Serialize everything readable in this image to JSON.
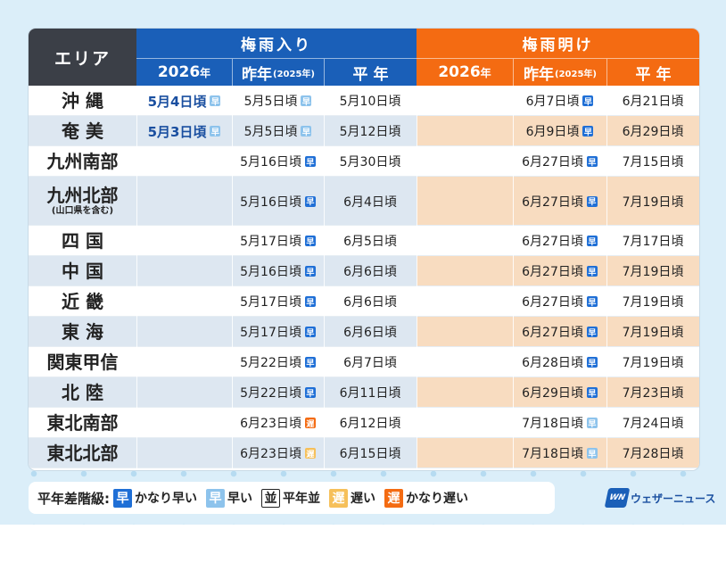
{
  "header": {
    "area": "エリア",
    "onset_group": "梅雨入り",
    "end_group": "梅雨明け",
    "col_current_num": "2026",
    "col_current_suffix": "年",
    "col_last_main": "昨年",
    "col_last_sub": "(2025年)",
    "col_normal": "平 年"
  },
  "colors": {
    "badge_much_earlier": "#1f6fd6",
    "badge_earlier": "#8dc3ec",
    "badge_normal": "#ffffff",
    "badge_later": "#f6c05a",
    "badge_much_later": "#f46b12"
  },
  "rows": [
    {
      "area": "沖 縄",
      "onset_2026": "5月4日頃",
      "onset_2026_badge": "早",
      "onset_2026_level": "earlier",
      "onset_last": "5月5日頃",
      "onset_last_badge": "早",
      "onset_last_level": "earlier",
      "onset_normal": "5月10日頃",
      "end_2026": "",
      "end_last": "6月7日頃",
      "end_last_badge": "早",
      "end_last_level": "much_earlier",
      "end_normal": "6月21日頃"
    },
    {
      "area": "奄 美",
      "onset_2026": "5月3日頃",
      "onset_2026_badge": "早",
      "onset_2026_level": "earlier",
      "onset_last": "5月5日頃",
      "onset_last_badge": "早",
      "onset_last_level": "earlier",
      "onset_normal": "5月12日頃",
      "end_2026": "",
      "end_last": "6月9日頃",
      "end_last_badge": "早",
      "end_last_level": "much_earlier",
      "end_normal": "6月29日頃"
    },
    {
      "area": "九州南部",
      "onset_2026": "",
      "onset_last": "5月16日頃",
      "onset_last_badge": "早",
      "onset_last_level": "much_earlier",
      "onset_normal": "5月30日頃",
      "end_2026": "",
      "end_last": "6月27日頃",
      "end_last_badge": "早",
      "end_last_level": "much_earlier",
      "end_normal": "7月15日頃"
    },
    {
      "area": "九州北部",
      "area_note": "(山口県を含む)",
      "onset_2026": "",
      "onset_last": "5月16日頃",
      "onset_last_badge": "早",
      "onset_last_level": "much_earlier",
      "onset_normal": "6月4日頃",
      "end_2026": "",
      "end_last": "6月27日頃",
      "end_last_badge": "早",
      "end_last_level": "much_earlier",
      "end_normal": "7月19日頃"
    },
    {
      "area": "四 国",
      "onset_2026": "",
      "onset_last": "5月17日頃",
      "onset_last_badge": "早",
      "onset_last_level": "much_earlier",
      "onset_normal": "6月5日頃",
      "end_2026": "",
      "end_last": "6月27日頃",
      "end_last_badge": "早",
      "end_last_level": "much_earlier",
      "end_normal": "7月17日頃"
    },
    {
      "area": "中 国",
      "onset_2026": "",
      "onset_last": "5月16日頃",
      "onset_last_badge": "早",
      "onset_last_level": "much_earlier",
      "onset_normal": "6月6日頃",
      "end_2026": "",
      "end_last": "6月27日頃",
      "end_last_badge": "早",
      "end_last_level": "much_earlier",
      "end_normal": "7月19日頃"
    },
    {
      "area": "近 畿",
      "onset_2026": "",
      "onset_last": "5月17日頃",
      "onset_last_badge": "早",
      "onset_last_level": "much_earlier",
      "onset_normal": "6月6日頃",
      "end_2026": "",
      "end_last": "6月27日頃",
      "end_last_badge": "早",
      "end_last_level": "much_earlier",
      "end_normal": "7月19日頃"
    },
    {
      "area": "東 海",
      "onset_2026": "",
      "onset_last": "5月17日頃",
      "onset_last_badge": "早",
      "onset_last_level": "much_earlier",
      "onset_normal": "6月6日頃",
      "end_2026": "",
      "end_last": "6月27日頃",
      "end_last_badge": "早",
      "end_last_level": "much_earlier",
      "end_normal": "7月19日頃"
    },
    {
      "area": "関東甲信",
      "onset_2026": "",
      "onset_last": "5月22日頃",
      "onset_last_badge": "早",
      "onset_last_level": "much_earlier",
      "onset_normal": "6月7日頃",
      "end_2026": "",
      "end_last": "6月28日頃",
      "end_last_badge": "早",
      "end_last_level": "much_earlier",
      "end_normal": "7月19日頃"
    },
    {
      "area": "北 陸",
      "onset_2026": "",
      "onset_last": "5月22日頃",
      "onset_last_badge": "早",
      "onset_last_level": "much_earlier",
      "onset_normal": "6月11日頃",
      "end_2026": "",
      "end_last": "6月29日頃",
      "end_last_badge": "早",
      "end_last_level": "much_earlier",
      "end_normal": "7月23日頃"
    },
    {
      "area": "東北南部",
      "onset_2026": "",
      "onset_last": "6月23日頃",
      "onset_last_badge": "遅",
      "onset_last_level": "much_later",
      "onset_normal": "6月12日頃",
      "end_2026": "",
      "end_last": "7月18日頃",
      "end_last_badge": "早",
      "end_last_level": "earlier",
      "end_normal": "7月24日頃"
    },
    {
      "area": "東北北部",
      "onset_2026": "",
      "onset_last": "6月23日頃",
      "onset_last_badge": "遅",
      "onset_last_level": "later",
      "onset_normal": "6月15日頃",
      "end_2026": "",
      "end_last": "7月18日頃",
      "end_last_badge": "早",
      "end_last_level": "earlier",
      "end_normal": "7月28日頃"
    }
  ],
  "legend": {
    "title": "平年差階級:",
    "items": [
      {
        "badge": "早",
        "label": "かなり早い",
        "level": "much_earlier"
      },
      {
        "badge": "早",
        "label": "早い",
        "level": "earlier"
      },
      {
        "badge": "並",
        "label": "平年並",
        "level": "normal"
      },
      {
        "badge": "遅",
        "label": "遅い",
        "level": "later"
      },
      {
        "badge": "遅",
        "label": "かなり遅い",
        "level": "much_later"
      }
    ]
  },
  "brand": {
    "mark": "WN",
    "name": "ウェザーニュース"
  }
}
